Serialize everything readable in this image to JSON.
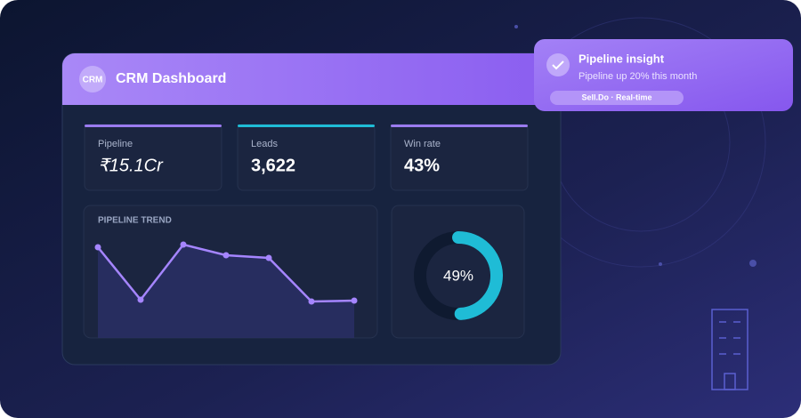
{
  "dashboard": {
    "logo": "CRM",
    "title": "CRM Dashboard",
    "kpis": [
      {
        "label": "Pipeline",
        "value": "₹15.1Cr",
        "color": "#9b7bf0"
      },
      {
        "label": "Leads",
        "value": "3,622",
        "color": "#1fbcd6"
      },
      {
        "label": "Win rate",
        "value": "43%",
        "color": "#9b7bf0"
      }
    ]
  },
  "notification": {
    "title": "Pipeline insight",
    "message": "Pipeline up 20% this month",
    "tag": "Sell.Do · Real-time"
  },
  "chart_data": [
    {
      "type": "line",
      "title": "PIPELINE TREND",
      "values": [
        102,
        43,
        105,
        93,
        90,
        41,
        42
      ],
      "ylim": [
        0,
        120
      ],
      "color": "#a585ff"
    },
    {
      "type": "donut",
      "values": [
        49
      ],
      "value_labels": [
        "49%"
      ],
      "color": "#1fbcd6"
    }
  ]
}
